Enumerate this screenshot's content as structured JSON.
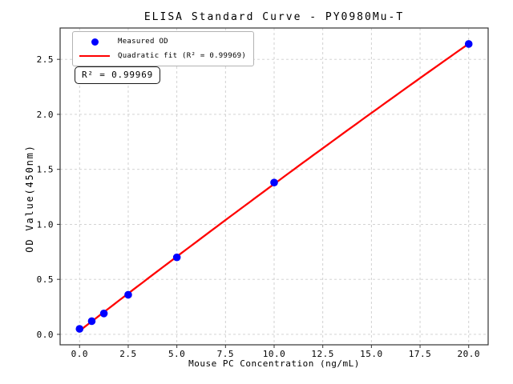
{
  "chart_data": {
    "type": "scatter",
    "title": "ELISA Standard Curve - PY0980Mu-T",
    "xlabel": "Mouse PC Concentration (ng/mL)",
    "ylabel": "OD Value(450nm)",
    "x": [
      0,
      0.625,
      1.25,
      2.5,
      5,
      10,
      20
    ],
    "y": [
      0.05,
      0.12,
      0.19,
      0.36,
      0.7,
      1.38,
      2.64
    ],
    "series": [
      {
        "name": "Measured OD",
        "type": "scatter",
        "color": "#0000ff"
      },
      {
        "name": "Quadratic fit (R² = 0.99969)",
        "type": "line",
        "fit": "quadratic",
        "color": "#ff0000"
      }
    ],
    "xticks": [
      0,
      2.5,
      5,
      7.5,
      10,
      12.5,
      15,
      17.5,
      20
    ],
    "xtick_labels": [
      "0.0",
      "2.5",
      "5.0",
      "7.5",
      "10.0",
      "12.5",
      "15.0",
      "17.5",
      "20.0"
    ],
    "yticks": [
      0,
      0.5,
      1,
      1.5,
      2,
      2.5
    ],
    "ytick_labels": [
      "0.0",
      "0.5",
      "1.0",
      "1.5",
      "2.0",
      "2.5"
    ],
    "xlim": [
      -1.0,
      21.0
    ],
    "ylim": [
      -0.095,
      2.785
    ],
    "grid": true,
    "legend_position": "upper-left",
    "annotation": "R² = 0.99969",
    "r_squared": 0.99969,
    "colors": {
      "marker": "#0000ff",
      "fit_line": "#ff0000",
      "grid": "#cdcdcd",
      "spine": "#333333",
      "text": "#000000",
      "legend_border": "#b3b3b3",
      "background": "#ffffff"
    }
  },
  "legend": {
    "items": [
      {
        "label": "Measured OD"
      },
      {
        "label": "Quadratic fit (R² = 0.99969)"
      }
    ]
  }
}
